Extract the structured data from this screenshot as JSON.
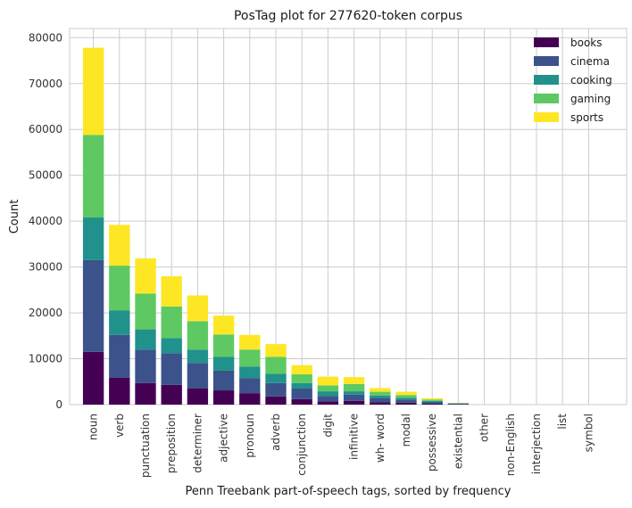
{
  "chart_data": {
    "type": "bar",
    "stacked": true,
    "title": "PosTag plot for 277620-token corpus",
    "xlabel": "Penn Treebank part-of-speech tags, sorted by frequency",
    "ylabel": "Count",
    "ylim": [
      0,
      82000
    ],
    "yticks": [
      0,
      10000,
      20000,
      30000,
      40000,
      50000,
      60000,
      70000,
      80000
    ],
    "grid": true,
    "legend_position": "top-right",
    "categories": [
      "noun",
      "verb",
      "punctuation",
      "preposition",
      "determiner",
      "adjective",
      "pronoun",
      "adverb",
      "conjunction",
      "digit",
      "infinitive",
      "wh- word",
      "modal",
      "possessive",
      "existential",
      "other",
      "non-English",
      "interjection",
      "list",
      "symbol"
    ],
    "series": [
      {
        "name": "books",
        "color": "#440154",
        "values": [
          11500,
          5900,
          4700,
          4300,
          3500,
          3100,
          2500,
          1800,
          1200,
          700,
          800,
          500,
          400,
          200,
          80,
          0,
          0,
          0,
          0,
          0
        ]
      },
      {
        "name": "cinema",
        "color": "#3b528b",
        "values": [
          20000,
          9300,
          7300,
          6900,
          5600,
          4300,
          3300,
          2900,
          2300,
          1200,
          1400,
          1000,
          700,
          400,
          120,
          0,
          0,
          0,
          0,
          0
        ]
      },
      {
        "name": "cooking",
        "color": "#21918c",
        "values": [
          9300,
          5300,
          4400,
          3300,
          2900,
          3000,
          2500,
          2000,
          1200,
          1000,
          700,
          500,
          400,
          200,
          60,
          0,
          0,
          0,
          0,
          0
        ]
      },
      {
        "name": "gaming",
        "color": "#5ec962",
        "values": [
          18000,
          9800,
          7800,
          6900,
          6200,
          4900,
          3700,
          3700,
          1900,
          1300,
          1600,
          800,
          600,
          300,
          100,
          0,
          0,
          0,
          0,
          0
        ]
      },
      {
        "name": "sports",
        "color": "#fde725",
        "values": [
          19000,
          8900,
          7700,
          6600,
          5600,
          4100,
          3200,
          2800,
          2000,
          1900,
          1500,
          800,
          700,
          300,
          40,
          0,
          0,
          0,
          0,
          0
        ]
      }
    ]
  }
}
